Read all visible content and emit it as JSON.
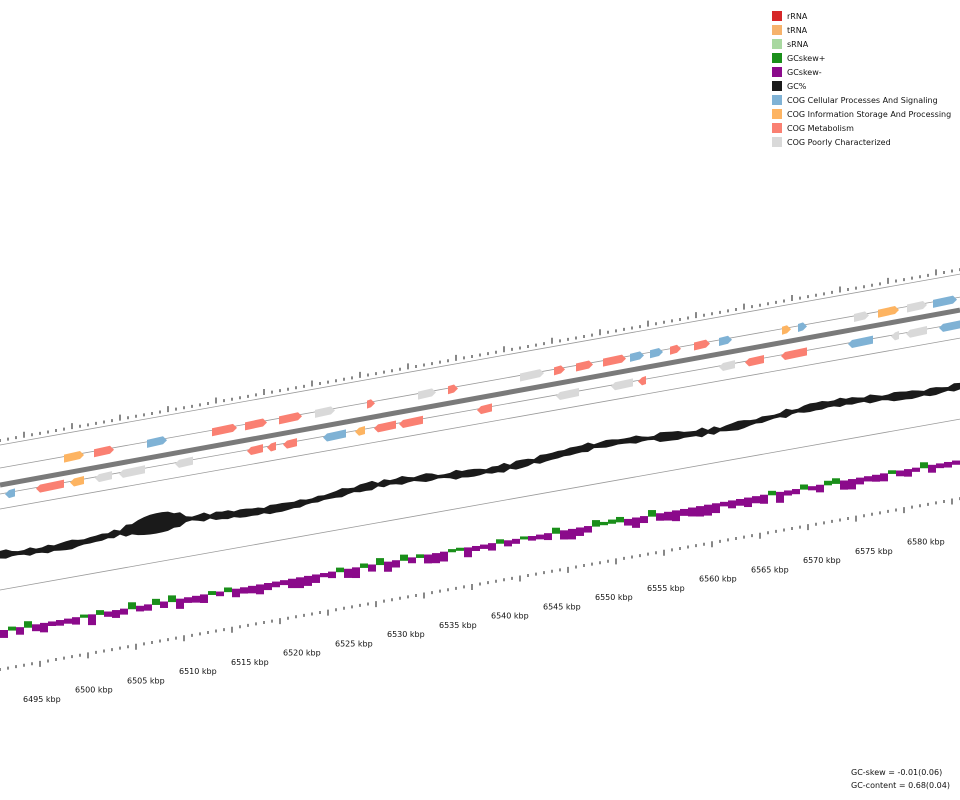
{
  "legend": [
    {
      "label": "rRNA",
      "color": "#d62728"
    },
    {
      "label": "tRNA",
      "color": "#f6b26b"
    },
    {
      "label": "sRNA",
      "color": "#a8d8a0"
    },
    {
      "label": "GCskew+",
      "color": "#1a8f1a"
    },
    {
      "label": "GCskew-",
      "color": "#8b0a8b"
    },
    {
      "label": "GC%",
      "color": "#1a1a1a"
    },
    {
      "label": "COG Cellular Processes And Signaling",
      "color": "#7fb2d5"
    },
    {
      "label": "COG Information Storage And Processing",
      "color": "#fdb462"
    },
    {
      "label": "COG Metabolism",
      "color": "#fa8072"
    },
    {
      "label": "COG Poorly Characterized",
      "color": "#d9d9d9"
    }
  ],
  "scale": {
    "labels": [
      "6495 kbp",
      "6500 kbp",
      "6505 kbp",
      "6510 kbp",
      "6515 kbp",
      "6520 kbp",
      "6525 kbp",
      "6530 kbp",
      "6535 kbp",
      "6540 kbp",
      "6545 kbp",
      "6550 kbp",
      "6555 kbp",
      "6560 kbp",
      "6565 kbp",
      "6570 kbp",
      "6575 kbp",
      "6580 kbp"
    ]
  },
  "stats": {
    "gc_skew": "GC-skew = -0.01(0.06)",
    "gc_content": "GC-content = 0.68(0.04)"
  }
}
